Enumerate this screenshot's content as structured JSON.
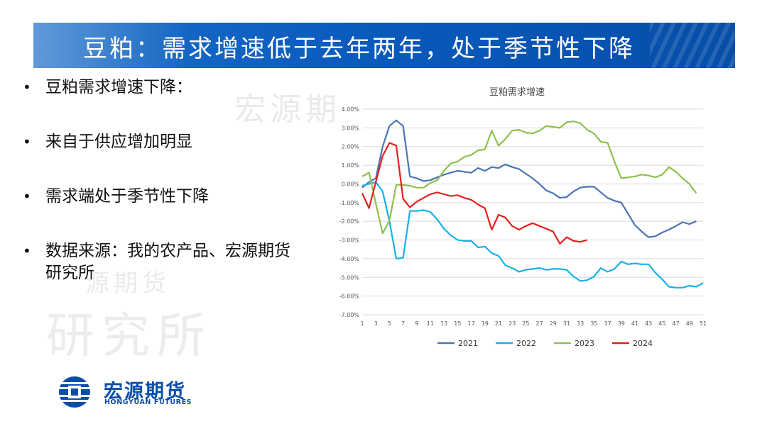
{
  "header": {
    "title": "豆粕：需求增速低于去年两年，处于季节性下降"
  },
  "bullets": [
    {
      "text": "豆粕需求增速下降："
    },
    {
      "text": "来自于供应增加明显"
    },
    {
      "text": "需求端处于季节性下降"
    },
    {
      "text": "数据来源：我的农产品、宏源期货研究所"
    }
  ],
  "bullet_glyph": "•",
  "watermarks": {
    "top": "宏源期",
    "middle": "源期货",
    "bottom": "研究所"
  },
  "logo": {
    "name_cn": "宏源期货",
    "name_en": "HONGYUAN FUTURES",
    "color": "#0b4ea8"
  },
  "chart_data": {
    "type": "line",
    "title": "豆粕需求增速",
    "xlabel": "",
    "ylabel": "",
    "x": [
      1,
      2,
      3,
      4,
      5,
      6,
      7,
      8,
      9,
      10,
      11,
      12,
      13,
      14,
      15,
      16,
      17,
      18,
      19,
      20,
      21,
      22,
      23,
      24,
      25,
      26,
      27,
      28,
      29,
      30,
      31,
      32,
      33,
      34,
      35,
      36,
      37,
      38,
      39,
      40,
      41,
      42,
      43,
      44,
      45,
      46,
      47,
      48,
      49,
      50,
      51
    ],
    "x_ticks": [
      1,
      3,
      5,
      7,
      9,
      11,
      13,
      15,
      17,
      19,
      21,
      23,
      25,
      27,
      29,
      31,
      33,
      35,
      37,
      39,
      41,
      43,
      45,
      47,
      49,
      51
    ],
    "ylim": [
      -7,
      4
    ],
    "y_ticks": [
      4,
      3,
      2,
      1,
      0,
      -1,
      -2,
      -3,
      -4,
      -5,
      -6,
      -7
    ],
    "y_unit": "%",
    "grid": true,
    "legend": "bottom",
    "series": [
      {
        "name": "2021",
        "color": "#4a74b4",
        "values": [
          -0.2,
          0.1,
          0.3,
          2.0,
          3.1,
          3.4,
          3.1,
          0.4,
          0.3,
          0.15,
          0.2,
          0.35,
          0.5,
          0.6,
          0.7,
          0.65,
          0.6,
          0.85,
          0.7,
          0.9,
          0.85,
          1.05,
          0.9,
          0.8,
          0.55,
          0.3,
          0.0,
          -0.35,
          -0.5,
          -0.75,
          -0.7,
          -0.4,
          -0.2,
          -0.15,
          -0.15,
          -0.45,
          -0.75,
          -0.9,
          -1.0,
          -1.6,
          -2.2,
          -2.55,
          -2.85,
          -2.8,
          -2.6,
          -2.45,
          -2.25,
          -2.05,
          -2.15,
          -2.0,
          null
        ]
      },
      {
        "name": "2022",
        "color": "#1ab0e8",
        "values": [
          -0.1,
          0.0,
          0.1,
          -0.4,
          -2.0,
          -4.0,
          -3.95,
          -1.45,
          -1.45,
          -1.4,
          -1.5,
          -1.9,
          -2.4,
          -2.75,
          -3.0,
          -3.05,
          -3.05,
          -3.4,
          -3.35,
          -3.7,
          -3.85,
          -4.35,
          -4.5,
          -4.7,
          -4.6,
          -4.55,
          -4.5,
          -4.6,
          -4.55,
          -4.55,
          -4.6,
          -4.95,
          -5.2,
          -5.15,
          -4.95,
          -4.5,
          -4.7,
          -4.55,
          -4.15,
          -4.3,
          -4.25,
          -4.3,
          -4.3,
          -4.75,
          -5.1,
          -5.5,
          -5.55,
          -5.55,
          -5.45,
          -5.5,
          -5.3
        ]
      },
      {
        "name": "2023",
        "color": "#8fbf4f",
        "values": [
          0.4,
          0.6,
          -1.05,
          -2.65,
          -1.95,
          -0.05,
          -0.05,
          -0.1,
          -0.2,
          -0.2,
          0.05,
          0.2,
          0.7,
          1.1,
          1.2,
          1.45,
          1.55,
          1.8,
          1.85,
          2.85,
          2.05,
          2.4,
          2.85,
          2.9,
          2.75,
          2.7,
          2.85,
          3.1,
          3.05,
          3.0,
          3.3,
          3.35,
          3.25,
          2.9,
          2.7,
          2.25,
          2.2,
          1.2,
          0.3,
          0.35,
          0.4,
          0.5,
          0.45,
          0.35,
          0.5,
          0.9,
          0.65,
          0.3,
          0.0,
          -0.5,
          null
        ]
      },
      {
        "name": "2024",
        "color": "#e62020",
        "values": [
          -0.5,
          -1.3,
          0.1,
          1.5,
          2.2,
          2.05,
          -0.8,
          -1.25,
          -0.95,
          -0.75,
          -0.55,
          -0.45,
          -0.55,
          -0.65,
          -0.6,
          -0.75,
          -0.85,
          -1.1,
          -1.3,
          -2.45,
          -1.65,
          -1.8,
          -2.25,
          -2.45,
          -2.25,
          -2.1,
          -2.25,
          -2.4,
          -2.55,
          -3.2,
          -2.85,
          -3.05,
          -3.1,
          -3.0,
          null,
          null,
          null,
          null,
          null,
          null,
          null,
          null,
          null,
          null,
          null,
          null,
          null,
          null,
          null,
          null,
          null
        ]
      }
    ]
  }
}
